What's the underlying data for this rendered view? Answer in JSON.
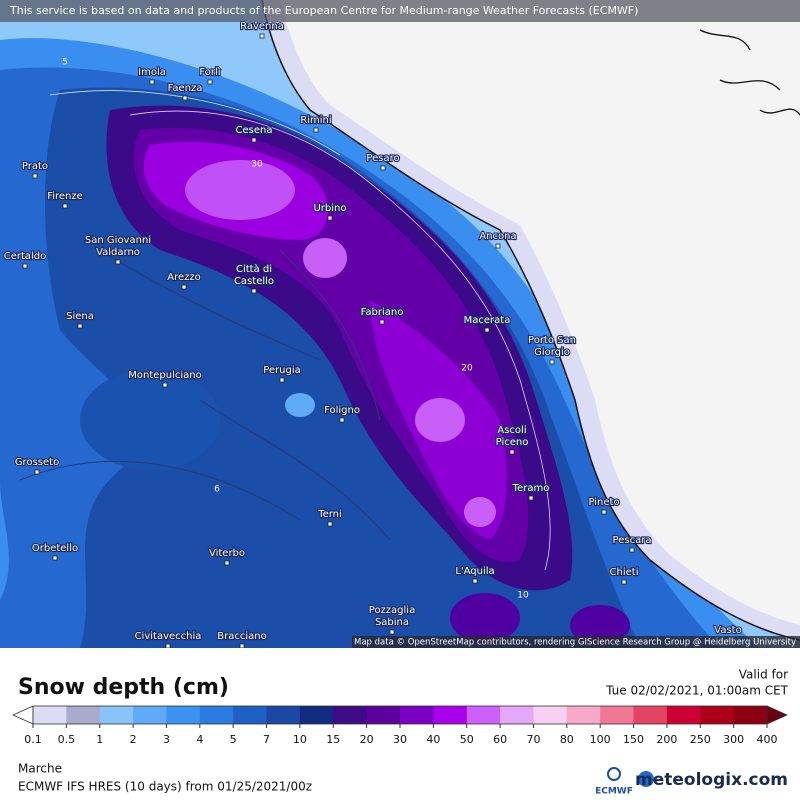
{
  "header": {
    "notice": "This service is based on data and products of the European Centre for Medium-range Weather Forecasts (ECMWF)"
  },
  "map": {
    "credit": "Map data © OpenStreetMap contributors, rendering GIScience Research Group @ Heidelberg University",
    "cities": [
      [
        "Ravenna"
      ],
      [
        "Imola"
      ],
      [
        "Faenza"
      ],
      [
        "Forlì"
      ],
      [
        "Cesena"
      ],
      [
        "Rimini"
      ],
      [
        "Pesaro"
      ],
      [
        "Prato"
      ],
      [
        "Firenze"
      ],
      [
        "Urbino"
      ],
      [
        "Ancona"
      ],
      [
        "San Giovanni",
        "Valdarno"
      ],
      [
        "Certaldo"
      ],
      [
        "Arezzo"
      ],
      [
        "Città di",
        "Castello"
      ],
      [
        "Fabriano"
      ],
      [
        "Macerata"
      ],
      [
        "Porto San",
        "Giorgio"
      ],
      [
        "Siena"
      ],
      [
        "Montepulciano"
      ],
      [
        "Perugia"
      ],
      [
        "Foligno"
      ],
      [
        "Ascoli",
        "Piceno"
      ],
      [
        "Grosseto"
      ],
      [
        "Teramo"
      ],
      [
        "Pineto"
      ],
      [
        "Terni"
      ],
      [
        "Pescara"
      ],
      [
        "Orbetello"
      ],
      [
        "Viterbo"
      ],
      [
        "L'Aquila"
      ],
      [
        "Chieti"
      ],
      [
        "Pozzaglia",
        "Sabina"
      ],
      [
        "Civitavecchia"
      ],
      [
        "Bracciano"
      ],
      [
        "Vasto"
      ]
    ],
    "contour_labels": [
      "5",
      "30",
      "20",
      "10",
      "6"
    ]
  },
  "footer": {
    "title": "Snow depth (cm)",
    "valid_label": "Valid for",
    "valid_time": "Tue 02/02/2021, 01:00am CET",
    "region": "Marche",
    "model": "ECMWF IFS HRES (10 days) from 01/25/2021/00z",
    "ecmwf_logo": "ECMWF",
    "brand": "meteologix.com"
  },
  "legend": {
    "ticks": [
      0.1,
      0.5,
      1,
      2,
      3,
      4,
      5,
      7,
      10,
      15,
      20,
      30,
      40,
      50,
      60,
      70,
      80,
      100,
      150,
      200,
      250,
      300,
      400
    ],
    "under_color": "#ffffff",
    "over_color": "#6a0010",
    "colors": [
      "#dcdcf4",
      "#aaaacc",
      "#88c4fa",
      "#5eacf8",
      "#3c92f0",
      "#2a7ae0",
      "#1f60c4",
      "#1a48a4",
      "#0f2c80",
      "#3e0a86",
      "#5c009e",
      "#7c00c4",
      "#a800ec",
      "#cc60f8",
      "#e4a8f8",
      "#f8d0f4",
      "#f8a8c8",
      "#f07896",
      "#e44464",
      "#cc0032",
      "#ac0018",
      "#8c0012"
    ]
  }
}
